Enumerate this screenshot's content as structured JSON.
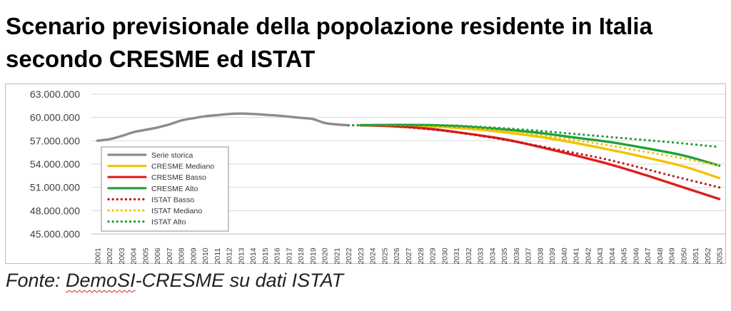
{
  "title": {
    "line1": "Scenario previsionale della popolazione residente in Italia",
    "line2": "secondo CRESME ed ISTAT"
  },
  "source": {
    "prefix": "Fonte: ",
    "underlined": "DemoSI",
    "suffix": "-CRESME su dati ISTAT"
  },
  "chart_data": {
    "type": "line",
    "title": "",
    "xlabel": "",
    "ylabel": "",
    "ylim": [
      45000000,
      63000000
    ],
    "y_ticks": [
      45000000,
      48000000,
      51000000,
      54000000,
      57000000,
      60000000,
      63000000
    ],
    "y_tick_labels": [
      "45.000.000",
      "48.000.000",
      "51.000.000",
      "54.000.000",
      "57.000.000",
      "60.000.000",
      "63.000.000"
    ],
    "grid": "horizontal",
    "legend_position": "left",
    "x_start": 2001,
    "x_end": 2053,
    "series": [
      {
        "name": "Serie storica",
        "color": "#8c8c8c",
        "style": "solid",
        "points": [
          [
            2001,
            57000000
          ],
          [
            2002,
            57200000
          ],
          [
            2003,
            57600000
          ],
          [
            2004,
            58100000
          ],
          [
            2005,
            58400000
          ],
          [
            2006,
            58700000
          ],
          [
            2007,
            59100000
          ],
          [
            2008,
            59600000
          ],
          [
            2009,
            59900000
          ],
          [
            2010,
            60150000
          ],
          [
            2011,
            60300000
          ],
          [
            2012,
            60450000
          ],
          [
            2013,
            60500000
          ],
          [
            2014,
            60450000
          ],
          [
            2015,
            60350000
          ],
          [
            2016,
            60250000
          ],
          [
            2017,
            60100000
          ],
          [
            2018,
            59950000
          ],
          [
            2019,
            59800000
          ],
          [
            2020,
            59300000
          ],
          [
            2021,
            59100000
          ],
          [
            2022,
            59000000
          ]
        ]
      },
      {
        "name": "CRESME Mediano",
        "color": "#f2c200",
        "style": "solid",
        "points": [
          [
            2023,
            59000000
          ],
          [
            2026,
            58980000
          ],
          [
            2029,
            58850000
          ],
          [
            2032,
            58550000
          ],
          [
            2035,
            58100000
          ],
          [
            2038,
            57500000
          ],
          [
            2041,
            56700000
          ],
          [
            2044,
            55800000
          ],
          [
            2047,
            54800000
          ],
          [
            2050,
            53700000
          ],
          [
            2053,
            52200000
          ]
        ]
      },
      {
        "name": "CRESME Basso",
        "color": "#e01e1e",
        "style": "solid",
        "points": [
          [
            2023,
            59000000
          ],
          [
            2026,
            58850000
          ],
          [
            2029,
            58500000
          ],
          [
            2032,
            57900000
          ],
          [
            2035,
            57200000
          ],
          [
            2038,
            56200000
          ],
          [
            2041,
            55100000
          ],
          [
            2044,
            53900000
          ],
          [
            2047,
            52500000
          ],
          [
            2050,
            51000000
          ],
          [
            2053,
            49500000
          ]
        ]
      },
      {
        "name": "CRESME Alto",
        "color": "#1fa03c",
        "style": "solid",
        "points": [
          [
            2023,
            59000000
          ],
          [
            2026,
            59030000
          ],
          [
            2029,
            59000000
          ],
          [
            2032,
            58800000
          ],
          [
            2035,
            58450000
          ],
          [
            2038,
            58000000
          ],
          [
            2041,
            57400000
          ],
          [
            2044,
            56800000
          ],
          [
            2047,
            56000000
          ],
          [
            2050,
            55100000
          ],
          [
            2053,
            53800000
          ]
        ]
      },
      {
        "name": "ISTAT Basso",
        "color": "#c0141c",
        "style": "dotted",
        "points": [
          [
            2022,
            59000000
          ],
          [
            2025,
            58900000
          ],
          [
            2028,
            58600000
          ],
          [
            2031,
            58100000
          ],
          [
            2034,
            57400000
          ],
          [
            2037,
            56600000
          ],
          [
            2040,
            55700000
          ],
          [
            2043,
            54800000
          ],
          [
            2046,
            53700000
          ],
          [
            2049,
            52500000
          ],
          [
            2053,
            51000000
          ]
        ]
      },
      {
        "name": "ISTAT Mediano",
        "color": "#f2c200",
        "style": "dotted",
        "points": [
          [
            2022,
            59000000
          ],
          [
            2025,
            59000000
          ],
          [
            2028,
            58950000
          ],
          [
            2031,
            58750000
          ],
          [
            2034,
            58400000
          ],
          [
            2037,
            57900000
          ],
          [
            2040,
            57300000
          ],
          [
            2043,
            56600000
          ],
          [
            2046,
            55800000
          ],
          [
            2049,
            55000000
          ],
          [
            2053,
            53800000
          ]
        ]
      },
      {
        "name": "ISTAT Alto",
        "color": "#1fa03c",
        "style": "dotted",
        "points": [
          [
            2022,
            59000000
          ],
          [
            2025,
            59050000
          ],
          [
            2028,
            59050000
          ],
          [
            2031,
            58950000
          ],
          [
            2034,
            58700000
          ],
          [
            2037,
            58400000
          ],
          [
            2040,
            58000000
          ],
          [
            2043,
            57600000
          ],
          [
            2046,
            57200000
          ],
          [
            2049,
            56800000
          ],
          [
            2053,
            56200000
          ]
        ]
      }
    ]
  }
}
